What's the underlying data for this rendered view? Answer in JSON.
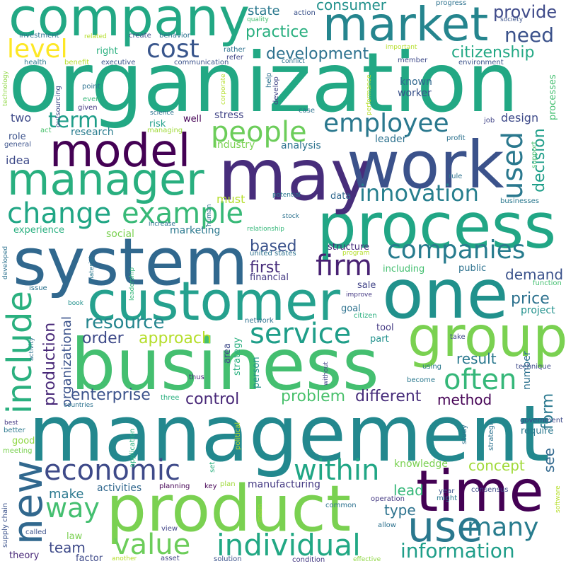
{
  "words": [
    {
      "id": "management",
      "text": "management",
      "color": "#23888e"
    },
    {
      "id": "organization",
      "text": "organization",
      "color": "#22a884"
    },
    {
      "id": "business",
      "text": "business",
      "color": "#44bf70"
    },
    {
      "id": "system",
      "text": "system",
      "color": "#31688e"
    },
    {
      "id": "customer",
      "text": "customer",
      "color": "#25a18e"
    },
    {
      "id": "process",
      "text": "process",
      "color": "#21a685"
    },
    {
      "id": "product",
      "text": "product",
      "color": "#7ad151"
    },
    {
      "id": "may",
      "text": "may",
      "color": "#472d7b"
    },
    {
      "id": "work",
      "text": "work",
      "color": "#3b528b"
    },
    {
      "id": "company",
      "text": "company",
      "color": "#22a884"
    },
    {
      "id": "one",
      "text": "one",
      "color": "#21918c"
    },
    {
      "id": "time",
      "text": "time",
      "color": "#440154"
    },
    {
      "id": "group",
      "text": "group",
      "color": "#7ad151"
    },
    {
      "id": "market",
      "text": "market",
      "color": "#25858e"
    },
    {
      "id": "manager",
      "text": "manager",
      "color": "#29af7f"
    },
    {
      "id": "model",
      "text": "model",
      "color": "#440154"
    },
    {
      "id": "use",
      "text": "use",
      "color": "#2a788e"
    },
    {
      "id": "new",
      "text": "new",
      "color": "#31688e"
    },
    {
      "id": "include",
      "text": "include",
      "color": "#2ab07f"
    },
    {
      "id": "change",
      "text": "change",
      "color": "#21a685"
    },
    {
      "id": "example",
      "text": "example",
      "color": "#38b977"
    },
    {
      "id": "people",
      "text": "people",
      "color": "#6ccd5a"
    },
    {
      "id": "employee",
      "text": "employee",
      "color": "#2a788e"
    },
    {
      "id": "companies",
      "text": "companies",
      "color": "#287c8e"
    },
    {
      "id": "economic",
      "text": "economic",
      "color": "#3e4a89"
    },
    {
      "id": "individual",
      "text": "individual",
      "color": "#22a884"
    },
    {
      "id": "value",
      "text": "value",
      "color": "#6ccd5a"
    },
    {
      "id": "within",
      "text": "within",
      "color": "#21a685"
    },
    {
      "id": "many",
      "text": "many",
      "color": "#287c8e"
    },
    {
      "id": "service",
      "text": "service",
      "color": "#1f9e89"
    },
    {
      "id": "firm",
      "text": "firm",
      "color": "#482173"
    },
    {
      "id": "innovation",
      "text": "innovation",
      "color": "#277f8e"
    },
    {
      "id": "often",
      "text": "often",
      "color": "#35b779"
    },
    {
      "id": "way",
      "text": "way",
      "color": "#44bf70"
    },
    {
      "id": "cost",
      "text": "cost",
      "color": "#39568c"
    },
    {
      "id": "level",
      "text": "level",
      "color": "#fde725"
    },
    {
      "id": "term",
      "text": "term",
      "color": "#1f9e89"
    },
    {
      "id": "used",
      "text": "used",
      "color": "#2a788e"
    },
    {
      "id": "information",
      "text": "information",
      "color": "#1f9e89"
    },
    {
      "id": "resource",
      "text": "resource",
      "color": "#25858e"
    },
    {
      "id": "approach",
      "text": "approach",
      "color": "#b5de2b"
    },
    {
      "id": "need",
      "text": "need",
      "color": "#3b528b"
    },
    {
      "id": "provide",
      "text": "provide",
      "color": "#3e4a89"
    },
    {
      "id": "citizenship",
      "text": "citizenship",
      "color": "#22a884"
    },
    {
      "id": "development",
      "text": "development",
      "color": "#2c718e"
    },
    {
      "id": "practice",
      "text": "practice",
      "color": "#29af7f"
    },
    {
      "id": "consumer",
      "text": "consumer",
      "color": "#21918c"
    },
    {
      "id": "state",
      "text": "state",
      "color": "#2a788e"
    },
    {
      "id": "decision",
      "text": "decision",
      "color": "#1f9e89"
    },
    {
      "id": "production",
      "text": "production",
      "color": "#482878"
    },
    {
      "id": "organizational",
      "text": "organizational",
      "color": "#3b528b"
    },
    {
      "id": "enterprise",
      "text": "enterprise",
      "color": "#3b528b"
    },
    {
      "id": "control",
      "text": "control",
      "color": "#482878"
    },
    {
      "id": "problem",
      "text": "problem",
      "color": "#4ac16d"
    },
    {
      "id": "different",
      "text": "different",
      "color": "#472d7b"
    },
    {
      "id": "method",
      "text": "method",
      "color": "#440154"
    },
    {
      "id": "form",
      "text": "form",
      "color": "#2a788e"
    },
    {
      "id": "order",
      "text": "order",
      "color": "#3e4a89"
    },
    {
      "id": "based",
      "text": "based",
      "color": "#3b528b"
    },
    {
      "id": "first",
      "text": "first",
      "color": "#472d7b"
    },
    {
      "id": "price",
      "text": "price",
      "color": "#2c718e"
    },
    {
      "id": "demand",
      "text": "demand",
      "color": "#3b528b"
    },
    {
      "id": "see",
      "text": "see",
      "color": "#31688e"
    },
    {
      "id": "concept",
      "text": "concept",
      "color": "#a0da39"
    },
    {
      "id": "result",
      "text": "result",
      "color": "#2a788e"
    },
    {
      "id": "lead",
      "text": "lead",
      "color": "#35b779"
    },
    {
      "id": "type",
      "text": "type",
      "color": "#2c728e"
    },
    {
      "id": "team",
      "text": "team",
      "color": "#3e4a89"
    },
    {
      "id": "make",
      "text": "make",
      "color": "#2a788e"
    },
    {
      "id": "activities",
      "text": "activities",
      "color": "#31688e"
    },
    {
      "id": "marketing",
      "text": "marketing",
      "color": "#2a788e"
    },
    {
      "id": "must",
      "text": "must",
      "color": "#b5de2b"
    },
    {
      "id": "manufacturing",
      "text": "manufacturing",
      "color": "#443983"
    },
    {
      "id": "project",
      "text": "project",
      "color": "#21918c"
    },
    {
      "id": "research",
      "text": "research",
      "color": "#287c8e"
    },
    {
      "id": "idea",
      "text": "idea",
      "color": "#3e4a89"
    },
    {
      "id": "two",
      "text": "two",
      "color": "#3e4a89"
    },
    {
      "id": "experience",
      "text": "experience",
      "color": "#29af7f"
    },
    {
      "id": "social",
      "text": "social",
      "color": "#7ad151"
    },
    {
      "id": "stress",
      "text": "stress",
      "color": "#414487"
    },
    {
      "id": "design",
      "text": "design",
      "color": "#3e4a89"
    },
    {
      "id": "industry",
      "text": "industry",
      "color": "#7ad151"
    },
    {
      "id": "analysis",
      "text": "analysis",
      "color": "#2c728e"
    },
    {
      "id": "leader",
      "text": "leader",
      "color": "#2c718e"
    },
    {
      "id": "worker",
      "text": "worker",
      "color": "#3b528b"
    },
    {
      "id": "known",
      "text": "known",
      "color": "#31688e"
    },
    {
      "id": "number",
      "text": "number",
      "color": "#2c718e"
    },
    {
      "id": "knowledge",
      "text": "knowledge",
      "color": "#7ad151"
    },
    {
      "id": "structure",
      "text": "structure",
      "color": "#472d7b"
    },
    {
      "id": "including",
      "text": "including",
      "color": "#44bf70"
    },
    {
      "id": "public",
      "text": "public",
      "color": "#2c718e"
    },
    {
      "id": "financial",
      "text": "financial",
      "color": "#443983"
    },
    {
      "id": "goal",
      "text": "goal",
      "color": "#2c718e"
    },
    {
      "id": "sale",
      "text": "sale",
      "color": "#414487"
    },
    {
      "id": "tool",
      "text": "tool",
      "color": "#443983"
    },
    {
      "id": "part",
      "text": "part",
      "color": "#21918c"
    },
    {
      "id": "data",
      "text": "data",
      "color": "#31688e"
    },
    {
      "id": "require",
      "text": "require",
      "color": "#2a788e"
    },
    {
      "id": "right",
      "text": "right",
      "color": "#2ab07f"
    },
    {
      "id": "two_b",
      "text": "potential",
      "color": "#2a788e"
    },
    {
      "id": "well",
      "text": "well",
      "color": "#440154"
    },
    {
      "id": "risk",
      "text": "risk",
      "color": "#1f9e89"
    },
    {
      "id": "role",
      "text": "role",
      "color": "#3b528b"
    },
    {
      "id": "area",
      "text": "area",
      "color": "#3e4a89"
    },
    {
      "id": "strategy",
      "text": "strategy",
      "color": "#2ab07f"
    },
    {
      "id": "person",
      "text": "person",
      "color": "#21918c"
    },
    {
      "id": "theory",
      "text": "theory",
      "color": "#482878"
    },
    {
      "id": "factor",
      "text": "factor",
      "color": "#3e4a89"
    },
    {
      "id": "law",
      "text": "law",
      "color": "#7ad151"
    },
    {
      "id": "good",
      "text": "good",
      "color": "#8fd744"
    },
    {
      "id": "better",
      "text": "better",
      "color": "#2a788e"
    },
    {
      "id": "meeting",
      "text": "meeting",
      "color": "#7ad151"
    },
    {
      "id": "called",
      "text": "called",
      "color": "#3b528b"
    },
    {
      "id": "view",
      "text": "view",
      "color": "#414487"
    },
    {
      "id": "planning",
      "text": "planning",
      "color": "#440154"
    },
    {
      "id": "key",
      "text": "key",
      "color": "#440154"
    },
    {
      "id": "set",
      "text": "set",
      "color": "#2ab07f"
    },
    {
      "id": "plan",
      "text": "plan",
      "color": "#a0da39"
    },
    {
      "id": "operation",
      "text": "operation",
      "color": "#443983"
    },
    {
      "id": "common",
      "text": "common",
      "color": "#2c718e"
    },
    {
      "id": "allow",
      "text": "allow",
      "color": "#2c718e"
    },
    {
      "id": "year",
      "text": "year",
      "color": "#3b528b"
    },
    {
      "id": "might",
      "text": "might",
      "color": "#2a788e"
    },
    {
      "id": "consensus",
      "text": "consensus",
      "color": "#3e4a89"
    },
    {
      "id": "software",
      "text": "software",
      "color": "#b5de2b"
    },
    {
      "id": "study",
      "text": "study",
      "color": "#2c728e"
    },
    {
      "id": "strategic",
      "text": "strategic",
      "color": "#2c718e"
    },
    {
      "id": "government",
      "text": "government",
      "color": "#3e4a89"
    },
    {
      "id": "technique",
      "text": "technique",
      "color": "#3e4a89"
    },
    {
      "id": "using",
      "text": "using",
      "color": "#2a788e"
    },
    {
      "id": "become",
      "text": "become",
      "color": "#2a788e"
    },
    {
      "id": "take",
      "text": "take",
      "color": "#3e4a89"
    },
    {
      "id": "network",
      "text": "network",
      "color": "#2c718e"
    },
    {
      "id": "citizen",
      "text": "citizen",
      "color": "#2ab07f"
    },
    {
      "id": "improve",
      "text": "improve",
      "color": "#443983"
    },
    {
      "id": "function",
      "text": "function",
      "color": "#44bf70"
    },
    {
      "id": "support",
      "text": "support",
      "color": "#44bf70"
    },
    {
      "id": "processes",
      "text": "processes",
      "color": "#44bf70"
    },
    {
      "id": "rule",
      "text": "rule",
      "color": "#2c718e"
    },
    {
      "id": "job",
      "text": "job",
      "color": "#414487"
    },
    {
      "id": "profit",
      "text": "profit",
      "color": "#2c718e"
    },
    {
      "id": "case",
      "text": "case",
      "color": "#2c718e"
    },
    {
      "id": "thus",
      "text": "thus",
      "color": "#482878"
    },
    {
      "id": "three",
      "text": "three",
      "color": "#2ab07f"
    },
    {
      "id": "solution",
      "text": "solution",
      "color": "#3b528b"
    },
    {
      "id": "condition",
      "text": "condition",
      "color": "#443983"
    },
    {
      "id": "effective",
      "text": "effective",
      "color": "#8fd744"
    },
    {
      "id": "asset",
      "text": "asset",
      "color": "#414487"
    },
    {
      "id": "another",
      "text": "another",
      "color": "#b5de2b"
    },
    {
      "id": "mean",
      "text": "mean",
      "color": "#a0da39"
    },
    {
      "id": "political",
      "text": "political",
      "color": "#b5de2b"
    },
    {
      "id": "application",
      "text": "application",
      "color": "#2ab07f"
    },
    {
      "id": "supply_chain",
      "text": "supply chain",
      "color": "#3b528b"
    },
    {
      "id": "activity",
      "text": "activity",
      "color": "#2c718e"
    },
    {
      "id": "countries",
      "text": "countries",
      "color": "#2c718e"
    },
    {
      "id": "best",
      "text": "best",
      "color": "#443983"
    },
    {
      "id": "issue",
      "text": "issue",
      "color": "#2c718e"
    },
    {
      "id": "material",
      "text": "material",
      "color": "#2a788e"
    },
    {
      "id": "leadership",
      "text": "leadership",
      "color": "#35b779"
    },
    {
      "id": "book",
      "text": "book",
      "color": "#21918c"
    },
    {
      "id": "developed",
      "text": "developed",
      "color": "#2c718e"
    },
    {
      "id": "without",
      "text": "without",
      "color": "#414487"
    },
    {
      "id": "program",
      "text": "program",
      "color": "#b5de2b"
    },
    {
      "id": "united_states",
      "text": "united states",
      "color": "#2c718e"
    },
    {
      "id": "relationship",
      "text": "relationship",
      "color": "#35b779"
    },
    {
      "id": "increase",
      "text": "increase",
      "color": "#2c718e"
    },
    {
      "id": "human",
      "text": "human",
      "color": "#2c718e"
    },
    {
      "id": "businesses",
      "text": "businesses",
      "color": "#2a788e"
    },
    {
      "id": "managing",
      "text": "managing",
      "color": "#a0da39"
    },
    {
      "id": "general",
      "text": "general",
      "color": "#3b528b"
    },
    {
      "id": "act",
      "text": "act",
      "color": "#4ac16d"
    },
    {
      "id": "given",
      "text": "given",
      "color": "#443983"
    },
    {
      "id": "even",
      "text": "even",
      "color": "#35b779"
    },
    {
      "id": "point",
      "text": "point",
      "color": "#2c718e"
    },
    {
      "id": "outsourcing",
      "text": "outsourcing",
      "color": "#3e4a89"
    },
    {
      "id": "health",
      "text": "health",
      "color": "#2a788e"
    },
    {
      "id": "technology",
      "text": "technology",
      "color": "#8fd744"
    },
    {
      "id": "benefit",
      "text": "benefit",
      "color": "#b5de2b"
    },
    {
      "id": "executive",
      "text": "executive",
      "color": "#3b528b"
    },
    {
      "id": "communication",
      "text": "communication",
      "color": "#3b528b"
    },
    {
      "id": "science",
      "text": "science",
      "color": "#2c718e"
    },
    {
      "id": "corporate",
      "text": "corporate",
      "color": "#b5de2b"
    },
    {
      "id": "develop",
      "text": "develop",
      "color": "#414487"
    },
    {
      "id": "help",
      "text": "help",
      "color": "#2c718e"
    },
    {
      "id": "performance",
      "text": "performance",
      "color": "#b5de2b"
    },
    {
      "id": "member",
      "text": "member",
      "color": "#3e4a89"
    },
    {
      "id": "important",
      "text": "important",
      "color": "#b5de2b"
    },
    {
      "id": "environment",
      "text": "environment",
      "color": "#3b528b"
    },
    {
      "id": "society",
      "text": "society",
      "color": "#3b528b"
    },
    {
      "id": "investment",
      "text": "investment",
      "color": "#2c718e"
    },
    {
      "id": "related",
      "text": "related",
      "color": "#b5de2b"
    },
    {
      "id": "create",
      "text": "create",
      "color": "#3e4a89"
    },
    {
      "id": "behavior",
      "text": "behavior",
      "color": "#2c718e"
    },
    {
      "id": "quality",
      "text": "quality",
      "color": "#44bf70"
    },
    {
      "id": "action",
      "text": "action",
      "color": "#3b528b"
    },
    {
      "id": "progress",
      "text": "progress",
      "color": "#2c718e"
    },
    {
      "id": "rather",
      "text": "rather",
      "color": "#2c718e"
    },
    {
      "id": "refer",
      "text": "refer",
      "color": "#414487"
    },
    {
      "id": "stock",
      "text": "stock",
      "color": "#2c718e"
    },
    {
      "id": "conflict",
      "text": "conflict",
      "color": "#2c718e"
    }
  ]
}
